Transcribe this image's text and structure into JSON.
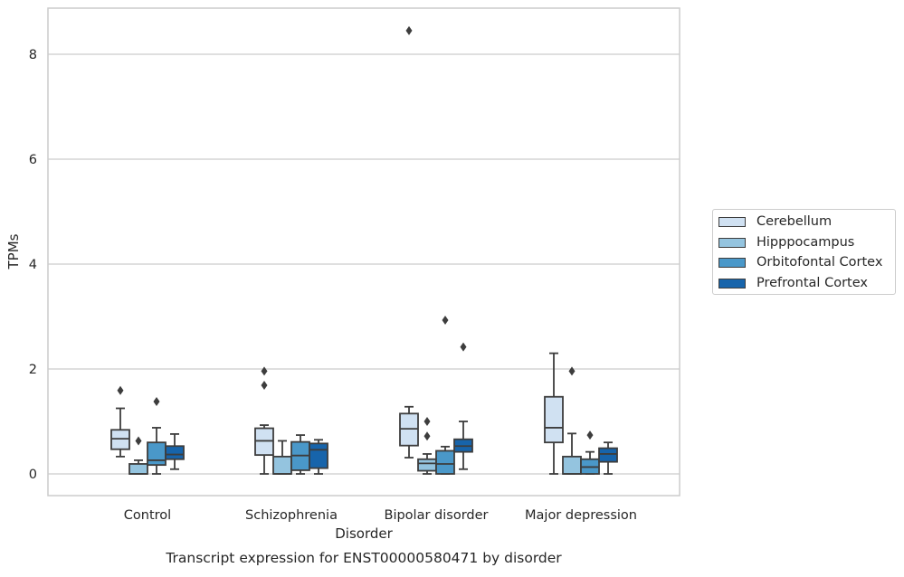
{
  "chart_data": {
    "type": "box",
    "title": "Transcript expression for ENST00000580471 by disorder",
    "xlabel": "Disorder",
    "ylabel": "TPMs",
    "ylim": [
      -0.4,
      8.9
    ],
    "yticks": [
      0,
      2,
      4,
      6,
      8
    ],
    "grid": "horizontal",
    "legend_position": "right",
    "categories": [
      "Control",
      "Schizophrenia",
      "Bipolar disorder",
      "Major depression"
    ],
    "series": [
      {
        "name": "Cerebellum",
        "color": "#d0e1f2",
        "boxes": [
          {
            "whisker_low": 0.33,
            "q1": 0.47,
            "median": 0.67,
            "q3": 0.84,
            "whisker_high": 1.25,
            "outliers": [
              1.59
            ]
          },
          {
            "whisker_low": 0.0,
            "q1": 0.36,
            "median": 0.63,
            "q3": 0.87,
            "whisker_high": 0.93,
            "outliers": [
              1.96,
              1.69
            ]
          },
          {
            "whisker_low": 0.31,
            "q1": 0.54,
            "median": 0.86,
            "q3": 1.15,
            "whisker_high": 1.28,
            "outliers": [
              8.45
            ]
          },
          {
            "whisker_low": 0.0,
            "q1": 0.6,
            "median": 0.88,
            "q3": 1.47,
            "whisker_high": 2.3,
            "outliers": []
          }
        ]
      },
      {
        "name": "Hipppocampus",
        "color": "#94c4df",
        "boxes": [
          {
            "whisker_low": 0.0,
            "q1": 0.0,
            "median": 0.0,
            "q3": 0.19,
            "whisker_high": 0.26,
            "outliers": [
              0.63
            ]
          },
          {
            "whisker_low": 0.0,
            "q1": 0.0,
            "median": 0.0,
            "q3": 0.33,
            "whisker_high": 0.63,
            "outliers": []
          },
          {
            "whisker_low": 0.0,
            "q1": 0.06,
            "median": 0.2,
            "q3": 0.28,
            "whisker_high": 0.38,
            "outliers": [
              1.0,
              0.72
            ]
          },
          {
            "whisker_low": 0.0,
            "q1": 0.0,
            "median": 0.0,
            "q3": 0.33,
            "whisker_high": 0.77,
            "outliers": [
              1.96
            ]
          }
        ]
      },
      {
        "name": "Orbitofontal Cortex",
        "color": "#4a98c9",
        "boxes": [
          {
            "whisker_low": 0.0,
            "q1": 0.17,
            "median": 0.26,
            "q3": 0.6,
            "whisker_high": 0.88,
            "outliers": [
              1.38
            ]
          },
          {
            "whisker_low": 0.0,
            "q1": 0.07,
            "median": 0.35,
            "q3": 0.61,
            "whisker_high": 0.74,
            "outliers": []
          },
          {
            "whisker_low": 0.0,
            "q1": 0.0,
            "median": 0.19,
            "q3": 0.44,
            "whisker_high": 0.52,
            "outliers": [
              2.93
            ]
          },
          {
            "whisker_low": 0.0,
            "q1": 0.0,
            "median": 0.13,
            "q3": 0.28,
            "whisker_high": 0.42,
            "outliers": [
              0.74
            ]
          }
        ]
      },
      {
        "name": "Prefrontal Cortex",
        "color": "#1764ab",
        "boxes": [
          {
            "whisker_low": 0.09,
            "q1": 0.28,
            "median": 0.37,
            "q3": 0.53,
            "whisker_high": 0.76,
            "outliers": []
          },
          {
            "whisker_low": 0.0,
            "q1": 0.11,
            "median": 0.46,
            "q3": 0.58,
            "whisker_high": 0.65,
            "outliers": []
          },
          {
            "whisker_low": 0.09,
            "q1": 0.42,
            "median": 0.53,
            "q3": 0.66,
            "whisker_high": 1.0,
            "outliers": [
              2.42
            ]
          },
          {
            "whisker_low": 0.0,
            "q1": 0.23,
            "median": 0.38,
            "q3": 0.49,
            "whisker_high": 0.6,
            "outliers": []
          }
        ]
      }
    ]
  }
}
